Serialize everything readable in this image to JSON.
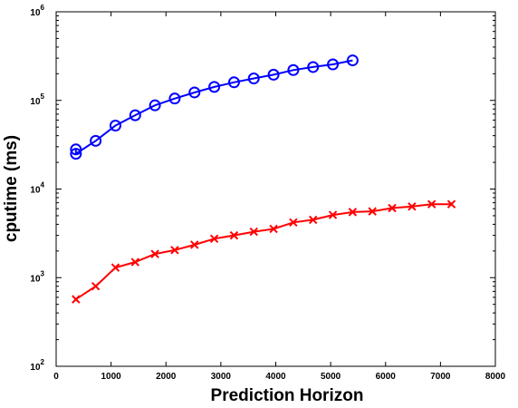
{
  "chart_data": {
    "type": "line",
    "title": "",
    "xlabel": "Prediction Horizon",
    "ylabel": "cputime (ms)",
    "xlim": [
      0,
      8000
    ],
    "ylim": [
      100,
      1000000
    ],
    "yscale": "log",
    "grid": false,
    "legend": "none",
    "x_ticks": [
      0,
      1000,
      2000,
      3000,
      4000,
      5000,
      6000,
      7000,
      8000
    ],
    "y_ticks": [
      {
        "value": 100,
        "base": "10",
        "exp": "2"
      },
      {
        "value": 1000,
        "base": "10",
        "exp": "3"
      },
      {
        "value": 10000,
        "base": "10",
        "exp": "4"
      },
      {
        "value": 100000,
        "base": "10",
        "exp": "5"
      },
      {
        "value": 1000000,
        "base": "10",
        "exp": "6"
      }
    ],
    "series": [
      {
        "color": "#0000ff",
        "marker": "circle",
        "points": [
          [
            360,
            28000
          ],
          [
            360,
            25000
          ],
          [
            720,
            35000
          ],
          [
            1080,
            52000
          ],
          [
            1440,
            68000
          ],
          [
            1800,
            88000
          ],
          [
            2160,
            105000
          ],
          [
            2520,
            123000
          ],
          [
            2880,
            142000
          ],
          [
            3240,
            160000
          ],
          [
            3600,
            177000
          ],
          [
            3960,
            195000
          ],
          [
            4320,
            220000
          ],
          [
            4680,
            238000
          ],
          [
            5040,
            255000
          ],
          [
            5400,
            283000
          ]
        ]
      },
      {
        "color": "#ff0000",
        "marker": "x",
        "points": [
          [
            360,
            570
          ],
          [
            720,
            800
          ],
          [
            1080,
            1300
          ],
          [
            1440,
            1500
          ],
          [
            1800,
            1850
          ],
          [
            2160,
            2050
          ],
          [
            2520,
            2350
          ],
          [
            2880,
            2750
          ],
          [
            3240,
            3000
          ],
          [
            3600,
            3300
          ],
          [
            3960,
            3550
          ],
          [
            4320,
            4200
          ],
          [
            4680,
            4500
          ],
          [
            5040,
            5100
          ],
          [
            5400,
            5500
          ],
          [
            5760,
            5600
          ],
          [
            6120,
            6100
          ],
          [
            6480,
            6350
          ],
          [
            6840,
            6750
          ],
          [
            7200,
            6750
          ]
        ]
      }
    ]
  }
}
